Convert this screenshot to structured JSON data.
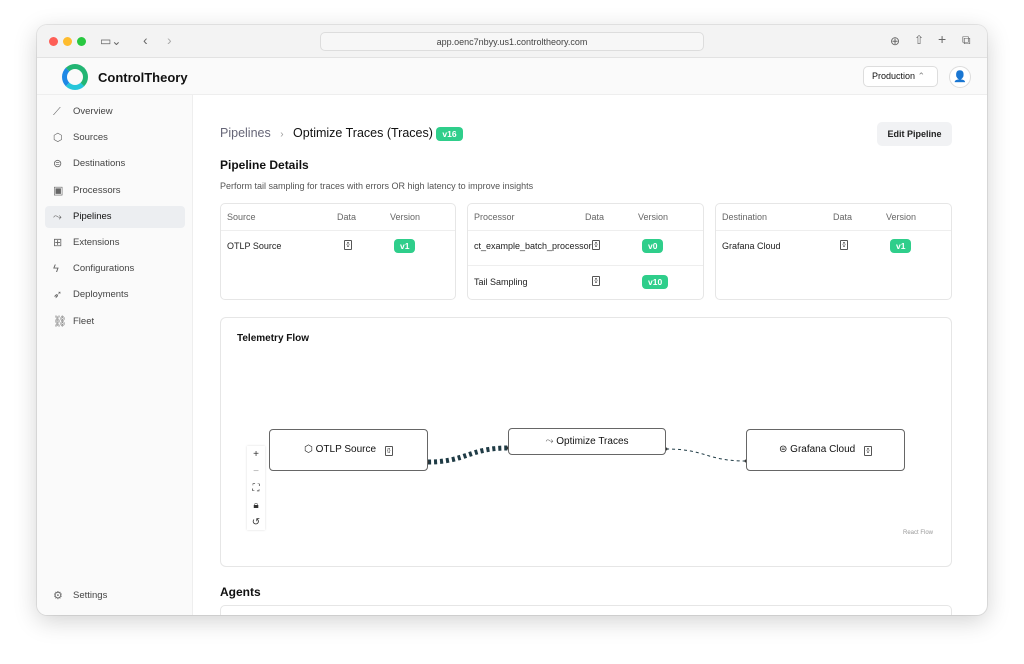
{
  "browser": {
    "url": "app.oenc7nbyy.us1.controltheory.com"
  },
  "app": {
    "brand": "ControlTheory",
    "environment": "Production"
  },
  "sidebar": {
    "items": [
      {
        "label": "Overview",
        "icon": "chart-line-icon"
      },
      {
        "label": "Sources",
        "icon": "cube-icon"
      },
      {
        "label": "Destinations",
        "icon": "arrow-circle-icon"
      },
      {
        "label": "Processors",
        "icon": "cpu-icon"
      },
      {
        "label": "Pipelines",
        "icon": "pipeline-icon",
        "active": true
      },
      {
        "label": "Extensions",
        "icon": "blocks-icon"
      },
      {
        "label": "Configurations",
        "icon": "bolt-icon"
      },
      {
        "label": "Deployments",
        "icon": "rocket-icon"
      },
      {
        "label": "Fleet",
        "icon": "link-icon"
      }
    ],
    "settings": "Settings"
  },
  "main": {
    "breadcrumb": {
      "parent": "Pipelines",
      "current": "Optimize Traces (Traces)",
      "version": "v16"
    },
    "edit_button": "Edit Pipeline",
    "details_title": "Pipeline Details",
    "description": "Perform tail sampling for traces with errors OR high latency to improve insights",
    "tables": {
      "source": {
        "headers": [
          "Source",
          "Data",
          "Version"
        ],
        "rows": [
          {
            "name": "OTLP Source",
            "version": "v1"
          }
        ]
      },
      "processor": {
        "headers": [
          "Processor",
          "Data",
          "Version"
        ],
        "rows": [
          {
            "name": "ct_example_batch_processor",
            "version": "v0"
          },
          {
            "name": "Tail Sampling",
            "version": "v10"
          }
        ]
      },
      "destination": {
        "headers": [
          "Destination",
          "Data",
          "Version"
        ],
        "rows": [
          {
            "name": "Grafana Cloud",
            "version": "v1"
          }
        ]
      }
    },
    "flow": {
      "title": "Telemetry Flow",
      "nodes": [
        "OTLP Source",
        "Optimize Traces",
        "Grafana Cloud"
      ],
      "attribution": "React Flow",
      "edge_color": "#1f3b45"
    },
    "agents_title": "Agents"
  },
  "colors": {
    "accent": "#2fce8b"
  }
}
